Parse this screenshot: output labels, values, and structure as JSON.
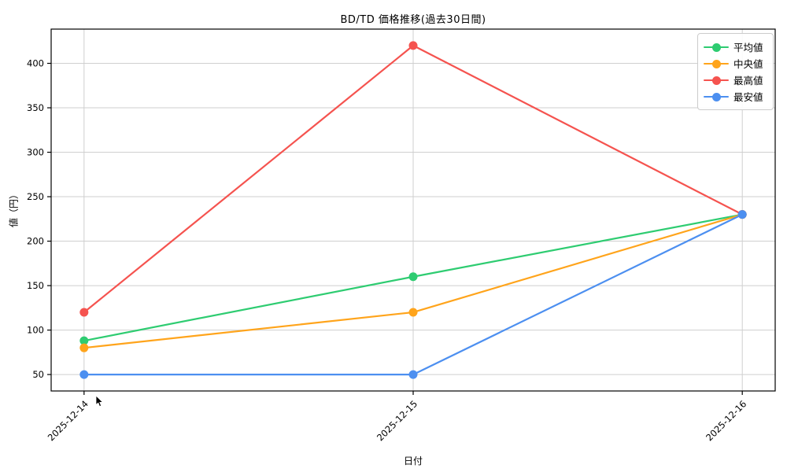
{
  "title": "BD/TD 価格推移(過去30日間)",
  "chart_data": {
    "type": "line",
    "title": "BD/TD 価格推移(過去30日間)",
    "x": [
      "2025-12-14",
      "2025-12-15",
      "2025-12-16"
    ],
    "series": [
      {
        "name": "平均値",
        "color": "#2ecc71",
        "values": [
          88,
          160,
          230
        ]
      },
      {
        "name": "中央値",
        "color": "#ffa41b",
        "values": [
          80,
          120,
          230
        ]
      },
      {
        "name": "最高値",
        "color": "#f5534f",
        "values": [
          120,
          420,
          230
        ]
      },
      {
        "name": "最安値",
        "color": "#4c8ff0",
        "values": [
          50,
          50,
          230
        ]
      }
    ],
    "xlabel": "日付",
    "ylabel": "値（円）",
    "yticks": [
      50,
      100,
      150,
      200,
      250,
      300,
      350,
      400
    ],
    "ylim": [
      31.5,
      438.5
    ],
    "grid": true,
    "legend_position": "upper right",
    "x_tick_rotation": 45,
    "marker": "circle"
  },
  "colors": {
    "grid": "#cfcfcf",
    "axis": "#000000",
    "tick_text": "#000000",
    "legend_border": "#cccccc",
    "background": "#ffffff"
  }
}
